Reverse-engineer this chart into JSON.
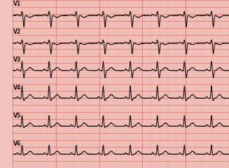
{
  "background_color": "#f2c4bc",
  "grid_major_color": "#d9756a",
  "grid_minor_color": "#e8a099",
  "ecg_color": "#1a1010",
  "label_color": "#1a1010",
  "leads": [
    "V1",
    "V2",
    "V3",
    "V4",
    "V5",
    "V6"
  ],
  "fig_width": 3.27,
  "fig_height": 2.4,
  "dpi": 100,
  "n_samples": 3000,
  "beats_per_lead": 8,
  "lead_params": {
    "V1": {
      "r_amp": 0.25,
      "s_amp": 0.7,
      "t_amp": -0.12,
      "p_amp": 0.06,
      "baseline": 0.3
    },
    "V2": {
      "r_amp": 0.2,
      "s_amp": 0.65,
      "t_amp": -0.08,
      "p_amp": 0.07,
      "baseline": 0.25
    },
    "V3": {
      "r_amp": 0.55,
      "s_amp": 0.45,
      "t_amp": 0.18,
      "p_amp": 0.08,
      "baseline": 0.1
    },
    "V4": {
      "r_amp": 0.75,
      "s_amp": 0.15,
      "t_amp": 0.22,
      "p_amp": 0.09,
      "baseline": 0.05
    },
    "V5": {
      "r_amp": 0.65,
      "s_amp": 0.08,
      "t_amp": 0.2,
      "p_amp": 0.09,
      "baseline": 0.05
    },
    "V6": {
      "r_amp": 0.55,
      "s_amp": 0.06,
      "t_amp": 0.18,
      "p_amp": 0.09,
      "baseline": 0.05
    }
  }
}
